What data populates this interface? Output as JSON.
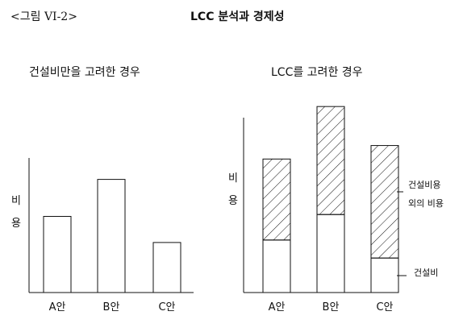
{
  "header": {
    "figure_label": "<그림 VI-2>",
    "title": "LCC 분석과 경제성"
  },
  "chart_data": [
    {
      "type": "bar",
      "title": "건설비만을 고려한 경우",
      "ylabel": "비용",
      "categories": [
        "A안",
        "B안",
        "C안"
      ],
      "series": [
        {
          "name": "",
          "values": [
            3.5,
            5.2,
            2.3
          ]
        }
      ],
      "ylim": [
        0,
        9
      ],
      "grid": false,
      "colors": {
        "fill": "#ffffff",
        "stroke": "#111111"
      }
    },
    {
      "type": "bar",
      "stacked": true,
      "title": "LCC를 고려한 경우",
      "ylabel": "비용",
      "categories": [
        "A안",
        "B안",
        "C안"
      ],
      "series": [
        {
          "name": "건설비",
          "values": [
            3.5,
            5.2,
            2.3
          ]
        },
        {
          "name": "건설비용 외의 비용",
          "values": [
            5.4,
            7.2,
            7.5
          ]
        }
      ],
      "ylim": [
        0,
        13
      ],
      "grid": false,
      "legend": "right",
      "colors": {
        "fill": "#ffffff",
        "stroke": "#111111",
        "hatch": "diagonal"
      }
    }
  ]
}
